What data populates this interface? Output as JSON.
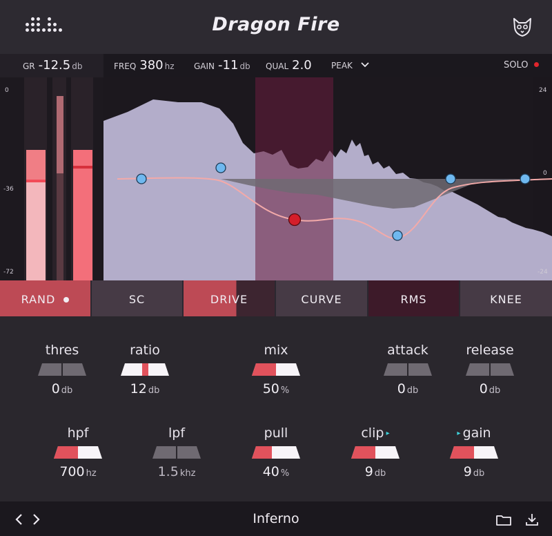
{
  "app": {
    "title": "Dragon Fire"
  },
  "param_bar": {
    "gr_label": "GR",
    "gr_value": "-12.5",
    "gr_unit": "db",
    "freq_label": "FREQ",
    "freq_value": "380",
    "freq_unit": "hz",
    "gain_label": "GAIN",
    "gain_value": "-11",
    "gain_unit": "db",
    "qual_label": "QUAL",
    "qual_value": "2.0",
    "peak_label": "PEAK",
    "solo_label": "SOLO"
  },
  "meter_scale": {
    "top": "0",
    "mid": "-36",
    "bottom": "-72"
  },
  "eq_scale": {
    "top": "24",
    "mid": "0",
    "bottom": "-24"
  },
  "tabs": [
    "RAND",
    "SC",
    "DRIVE",
    "CURVE",
    "RMS",
    "KNEE"
  ],
  "controls": {
    "thres": {
      "label": "thres",
      "value": "0",
      "unit": "db",
      "level": 0.5
    },
    "ratio": {
      "label": "ratio",
      "value": "12",
      "unit": "db",
      "level": 0.5
    },
    "mix": {
      "label": "mix",
      "value": "50",
      "unit": "%",
      "level": 0.5
    },
    "attack": {
      "label": "attack",
      "value": "0",
      "unit": "db",
      "level": 0.5
    },
    "release": {
      "label": "release",
      "value": "0",
      "unit": "db",
      "level": 0.5
    },
    "hpf": {
      "label": "hpf",
      "value": "700",
      "unit": "hz",
      "level": 0.5
    },
    "lpf": {
      "label": "lpf",
      "value": "1.5",
      "unit": "khz",
      "level": 0.5
    },
    "pull": {
      "label": "pull",
      "value": "40",
      "unit": "%",
      "level": 0.4
    },
    "clip": {
      "label": "clip",
      "value": "9",
      "unit": "db",
      "level": 0.5
    },
    "gain": {
      "label": "gain",
      "value": "9",
      "unit": "db",
      "level": 0.5
    }
  },
  "footer": {
    "preset_name": "Inferno"
  },
  "colors": {
    "accent": "#e1525c",
    "active_node": "#d41e2a",
    "node": "#6fb4ec",
    "spectrum": "#bdb8d6",
    "curve": "#f3a8a8",
    "band": "#3c1a2a"
  },
  "icons": {
    "logo": "dots-logo-icon",
    "cat": "cat-face-icon",
    "prev": "chevron-left-icon",
    "next": "chevron-right-icon",
    "folder": "folder-icon",
    "download": "download-icon"
  }
}
